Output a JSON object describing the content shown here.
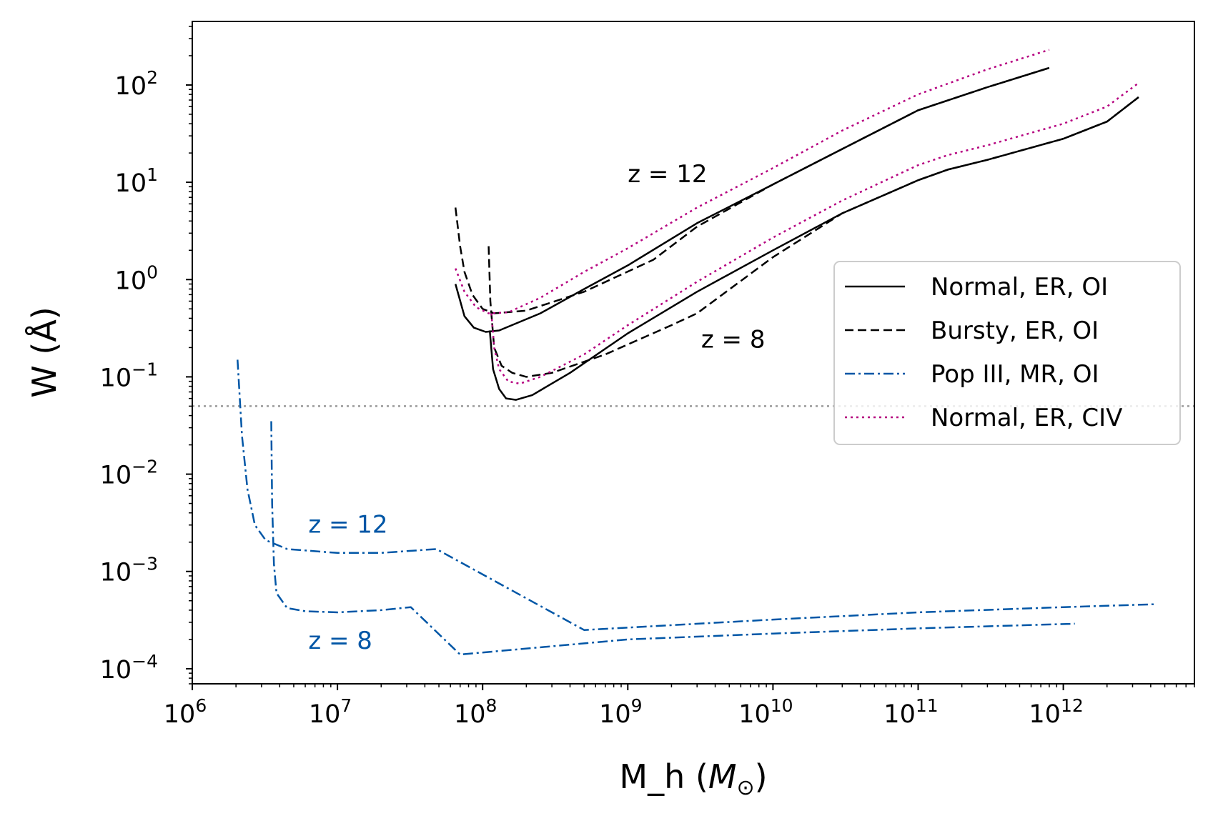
{
  "chart_data": {
    "type": "line",
    "xlabel": "M_h (M⊙)",
    "xlabel_text": "M_h (",
    "xlabel_unit": "M",
    "xlabel_sub": "⊙",
    "xlabel_close": ")",
    "ylabel": "W (Å)",
    "ylabel_text": "W (Å)",
    "xscale": "log",
    "yscale": "log",
    "xlim": [
      1000000,
      8000000000000
    ],
    "ylim": [
      7e-05,
      450
    ],
    "x_ticks": [
      {
        "base": "10",
        "exp": "6",
        "value": 1000000
      },
      {
        "base": "10",
        "exp": "7",
        "value": 10000000
      },
      {
        "base": "10",
        "exp": "8",
        "value": 100000000
      },
      {
        "base": "10",
        "exp": "9",
        "value": 1000000000
      },
      {
        "base": "10",
        "exp": "10",
        "value": 10000000000
      },
      {
        "base": "10",
        "exp": "11",
        "value": 100000000000
      },
      {
        "base": "10",
        "exp": "12",
        "value": 1000000000000
      }
    ],
    "y_ticks": [
      {
        "base": "10",
        "exp": "−4",
        "value": 0.0001
      },
      {
        "base": "10",
        "exp": "−3",
        "value": 0.001
      },
      {
        "base": "10",
        "exp": "−2",
        "value": 0.01
      },
      {
        "base": "10",
        "exp": "−1",
        "value": 0.1
      },
      {
        "base": "10",
        "exp": "0",
        "value": 1
      },
      {
        "base": "10",
        "exp": "1",
        "value": 10
      },
      {
        "base": "10",
        "exp": "2",
        "value": 100
      }
    ],
    "threshold": {
      "y": 0.05,
      "color": "#999999",
      "style": "dotted"
    },
    "legend": {
      "placement": "center-right",
      "entries": [
        {
          "label": "Normal, ER, OI",
          "color": "#000000",
          "style": "solid"
        },
        {
          "label": "Bursty, ER, OI",
          "color": "#000000",
          "style": "dashed"
        },
        {
          "label": "Pop III, MR, OI",
          "color": "#0056a6",
          "style": "dashdot"
        },
        {
          "label": "Normal, ER, CIV",
          "color": "#b5007f",
          "style": "dotted"
        }
      ]
    },
    "annotations": [
      {
        "text": "z = 12",
        "x": 1000000000,
        "y": 10,
        "color": "#000000"
      },
      {
        "text": "z = 8",
        "x": 3200000000,
        "y": 0.2,
        "color": "#000000"
      },
      {
        "text": "z = 12",
        "x": 6300000,
        "y": 0.0025,
        "color": "#0056a6"
      },
      {
        "text": "z = 8",
        "x": 6300000,
        "y": 0.00016,
        "color": "#0056a6"
      }
    ],
    "series": [
      {
        "name": "Normal, ER, OI (z = 12)",
        "style": "solid",
        "color": "#000000",
        "points": [
          [
            65000000.0,
            0.9
          ],
          [
            75000000.0,
            0.42
          ],
          [
            87000000.0,
            0.32
          ],
          [
            105000000.0,
            0.29
          ],
          [
            130000000.0,
            0.3
          ],
          [
            250000000.0,
            0.45
          ],
          [
            500000000.0,
            0.8
          ],
          [
            1000000000.0,
            1.4
          ],
          [
            3000000000.0,
            3.8
          ],
          [
            10000000000.0,
            9.5
          ],
          [
            30000000000.0,
            22
          ],
          [
            100000000000.0,
            55
          ],
          [
            300000000000.0,
            95
          ],
          [
            800000000000.0,
            150
          ]
        ]
      },
      {
        "name": "Bursty, ER, OI (z = 12)",
        "style": "dashed",
        "color": "#000000",
        "points": [
          [
            65000000.0,
            5.5
          ],
          [
            70000000.0,
            2.2
          ],
          [
            75000000.0,
            1.2
          ],
          [
            85000000.0,
            0.7
          ],
          [
            100000000.0,
            0.5
          ],
          [
            120000000.0,
            0.45
          ],
          [
            200000000.0,
            0.48
          ],
          [
            500000000.0,
            0.75
          ],
          [
            1500000000.0,
            1.6
          ],
          [
            3000000000.0,
            3.5
          ],
          [
            10000000000.0,
            9.5
          ],
          [
            30000000000.0,
            22
          ],
          [
            100000000000.0,
            55
          ],
          [
            300000000000.0,
            95
          ],
          [
            800000000000.0,
            150
          ]
        ]
      },
      {
        "name": "Normal, ER, CIV (z = 12)",
        "style": "dotted",
        "color": "#b5007f",
        "points": [
          [
            65000000.0,
            1.3
          ],
          [
            75000000.0,
            0.75
          ],
          [
            90000000.0,
            0.52
          ],
          [
            110000000.0,
            0.45
          ],
          [
            150000000.0,
            0.46
          ],
          [
            250000000.0,
            0.65
          ],
          [
            500000000.0,
            1.2
          ],
          [
            1000000000.0,
            2.1
          ],
          [
            3000000000.0,
            5.5
          ],
          [
            10000000000.0,
            14
          ],
          [
            30000000000.0,
            34
          ],
          [
            100000000000.0,
            80
          ],
          [
            300000000000.0,
            145
          ],
          [
            800000000000.0,
            230
          ]
        ]
      },
      {
        "name": "Normal, ER, OI (z = 8)",
        "style": "solid",
        "color": "#000000",
        "points": [
          [
            112000000.0,
            0.3
          ],
          [
            118000000.0,
            0.12
          ],
          [
            130000000.0,
            0.075
          ],
          [
            145000000.0,
            0.06
          ],
          [
            170000000.0,
            0.058
          ],
          [
            220000000.0,
            0.065
          ],
          [
            400000000.0,
            0.11
          ],
          [
            1000000000.0,
            0.28
          ],
          [
            3000000000.0,
            0.75
          ],
          [
            10000000000.0,
            2
          ],
          [
            30000000000.0,
            4.8
          ],
          [
            100000000000.0,
            10.5
          ],
          [
            160000000000.0,
            13.5
          ],
          [
            300000000000.0,
            17
          ],
          [
            1000000000000.0,
            28
          ],
          [
            2000000000000.0,
            42
          ],
          [
            3300000000000.0,
            75
          ]
        ]
      },
      {
        "name": "Bursty, ER, OI (z = 8)",
        "style": "dashed",
        "color": "#000000",
        "points": [
          [
            110000000.0,
            2.2
          ],
          [
            113000000.0,
            0.6
          ],
          [
            120000000.0,
            0.2
          ],
          [
            135000000.0,
            0.13
          ],
          [
            160000000.0,
            0.11
          ],
          [
            200000000.0,
            0.1
          ],
          [
            300000000.0,
            0.11
          ],
          [
            700000000.0,
            0.17
          ],
          [
            2000000000.0,
            0.34
          ],
          [
            3000000000.0,
            0.45
          ],
          [
            10000000000.0,
            1.7
          ],
          [
            30000000000.0,
            4.8
          ],
          [
            100000000000.0,
            10.5
          ],
          [
            160000000000.0,
            13.5
          ],
          [
            300000000000.0,
            17
          ],
          [
            1000000000000.0,
            28
          ],
          [
            2000000000000.0,
            42
          ],
          [
            3300000000000.0,
            75
          ]
        ]
      },
      {
        "name": "Normal, ER, CIV (z = 8)",
        "style": "dotted",
        "color": "#b5007f",
        "points": [
          [
            115000000.0,
            0.45
          ],
          [
            120000000.0,
            0.2
          ],
          [
            130000000.0,
            0.12
          ],
          [
            150000000.0,
            0.09
          ],
          [
            180000000.0,
            0.085
          ],
          [
            250000000.0,
            0.1
          ],
          [
            500000000.0,
            0.17
          ],
          [
            1000000000.0,
            0.34
          ],
          [
            3000000000.0,
            0.95
          ],
          [
            10000000000.0,
            2.7
          ],
          [
            30000000000.0,
            6.5
          ],
          [
            100000000000.0,
            15
          ],
          [
            160000000000.0,
            19
          ],
          [
            300000000000.0,
            24
          ],
          [
            1000000000000.0,
            40
          ],
          [
            2000000000000.0,
            60
          ],
          [
            3300000000000.0,
            105
          ]
        ]
      },
      {
        "name": "Pop III, MR, OI (z = 12)",
        "style": "dashdot",
        "color": "#0056a6",
        "points": [
          [
            2050000.0,
            0.15
          ],
          [
            2200000.0,
            0.025
          ],
          [
            2400000.0,
            0.007
          ],
          [
            2700000.0,
            0.003
          ],
          [
            3200000.0,
            0.0021
          ],
          [
            4500000.0,
            0.0017
          ],
          [
            10000000.0,
            0.00155
          ],
          [
            20000000.0,
            0.00155
          ],
          [
            48000000.0,
            0.0017
          ],
          [
            500000000.0,
            0.00025
          ],
          [
            10000000000.0,
            0.00032
          ],
          [
            100000000000.0,
            0.00038
          ],
          [
            1000000000000.0,
            0.00043
          ],
          [
            4200000000000.0,
            0.00046
          ]
        ]
      },
      {
        "name": "Pop III, MR, OI (z = 8)",
        "style": "dashdot",
        "color": "#0056a6",
        "points": [
          [
            3500000.0,
            0.035
          ],
          [
            3550000.0,
            0.005
          ],
          [
            3650000.0,
            0.0012
          ],
          [
            3800000.0,
            0.0006
          ],
          [
            4500000.0,
            0.00042
          ],
          [
            6000000.0,
            0.00039
          ],
          [
            10000000.0,
            0.00038
          ],
          [
            20000000.0,
            0.0004
          ],
          [
            32000000.0,
            0.00043
          ],
          [
            70000000.0,
            0.00014
          ],
          [
            1000000000.0,
            0.0002
          ],
          [
            10000000000.0,
            0.00023
          ],
          [
            100000000000.0,
            0.00026
          ],
          [
            1200000000000.0,
            0.00029
          ]
        ]
      }
    ]
  }
}
